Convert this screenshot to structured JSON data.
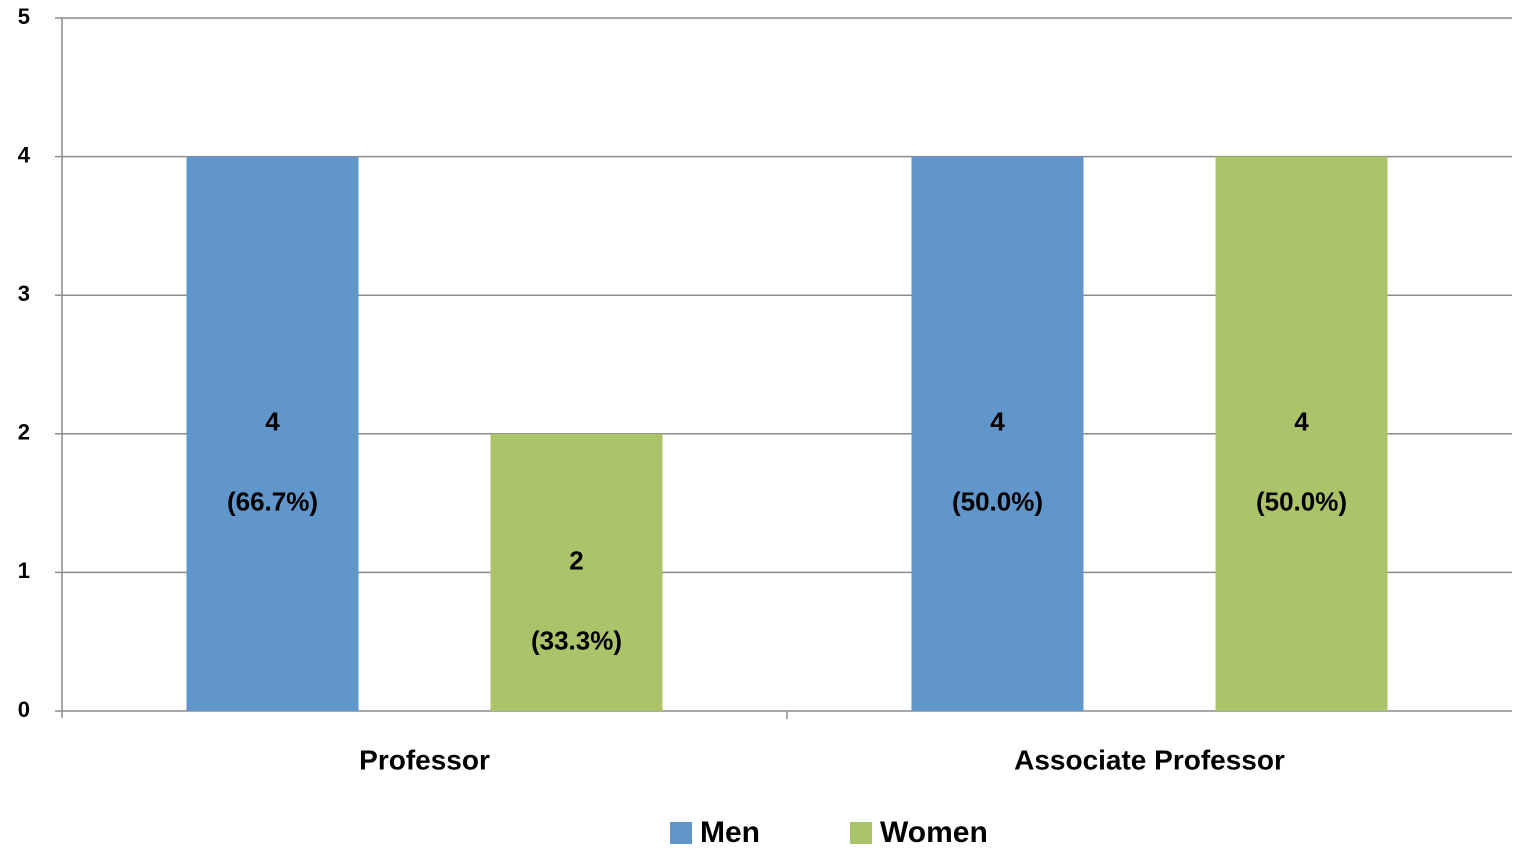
{
  "chart_data": {
    "type": "bar",
    "categories": [
      "Professor",
      "Associate Professor"
    ],
    "series": [
      {
        "name": "Men",
        "color": "#6096c9",
        "values": [
          4,
          4
        ],
        "percent_labels": [
          "(66.7%)",
          "(50.0%)"
        ]
      },
      {
        "name": "Women",
        "color": "#abc46a",
        "values": [
          2,
          4
        ],
        "percent_labels": [
          "(33.3%)",
          "(50.0%)"
        ]
      }
    ],
    "ylim": [
      0,
      5
    ],
    "yticks": [
      0,
      1,
      2,
      3,
      4,
      5
    ],
    "grid": true,
    "legend": "bottom"
  }
}
